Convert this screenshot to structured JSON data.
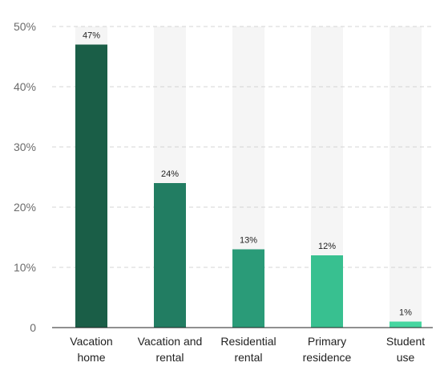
{
  "chart_data": {
    "type": "bar",
    "categories": [
      [
        "Vacation",
        "home"
      ],
      [
        "Vacation and",
        "rental"
      ],
      [
        "Residential",
        "rental"
      ],
      [
        "Primary",
        "residence"
      ],
      [
        "Student",
        "use"
      ]
    ],
    "values": [
      47,
      24,
      13,
      12,
      1
    ],
    "value_labels": [
      "47%",
      "24%",
      "13%",
      "12%",
      "1%"
    ],
    "ylim": [
      0,
      50
    ],
    "yticks": [
      {
        "value": 0,
        "label": "0"
      },
      {
        "value": 10,
        "label": "10%"
      },
      {
        "value": 20,
        "label": "20%"
      },
      {
        "value": 30,
        "label": "30%"
      },
      {
        "value": 40,
        "label": "40%"
      },
      {
        "value": 50,
        "label": "50%"
      }
    ],
    "bar_colors": [
      "#1a5e47",
      "#227d62",
      "#2a9b78",
      "#38c090",
      "#46d6a0"
    ],
    "column_band_color": "#f5f5f5",
    "grid": true,
    "grid_color": "#d4d4d4",
    "axis_color": "#222222",
    "text_color": "#6b6b6b",
    "label_color": "#222222",
    "xlabel": "",
    "ylabel": "",
    "title": ""
  }
}
